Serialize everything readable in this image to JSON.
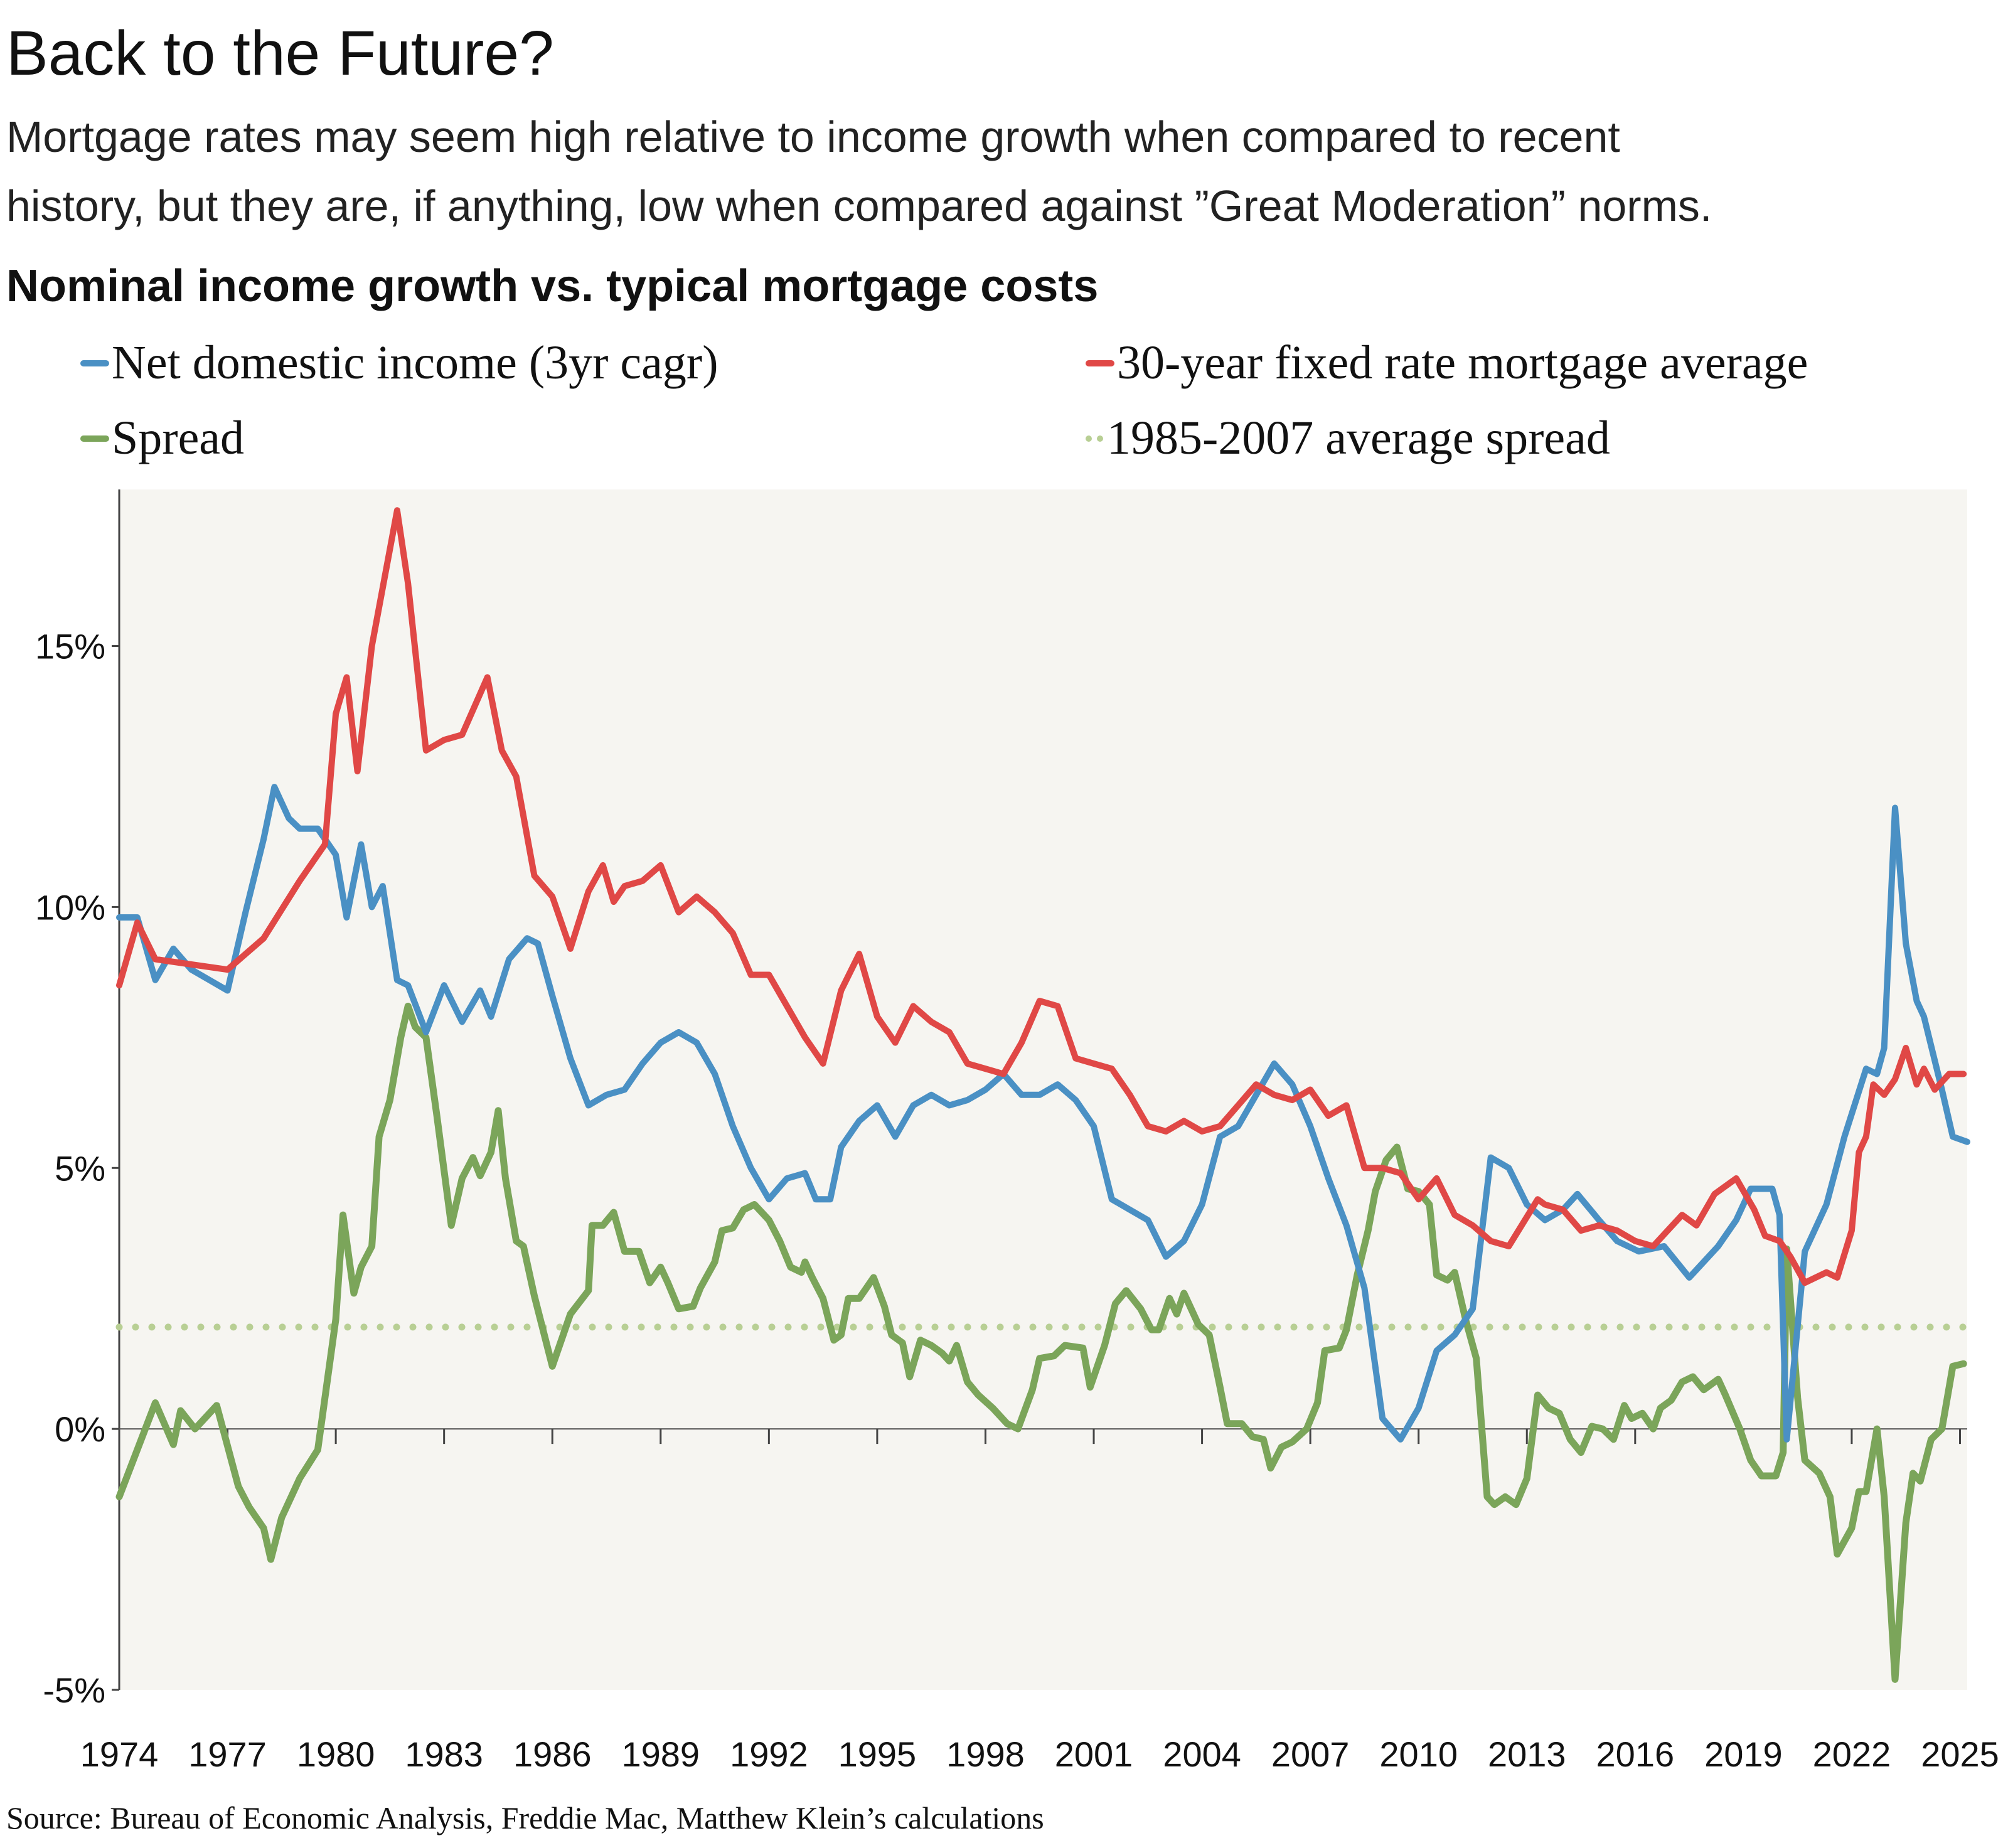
{
  "header": {
    "title": "Back to the Future?",
    "subtitle_line1": "Mortgage rates may seem high relative to income growth when compared to recent",
    "subtitle_line2": "history, but they are, if anything, low when compared against ”Great Moderation” norms.",
    "chart_heading": "Nominal income growth vs. typical mortgage costs"
  },
  "source": "Source: Bureau of Economic Analysis, Freddie Mac, Matthew Klein’s calculations",
  "colors": {
    "income": "#4a90c4",
    "mortgage": "#e04846",
    "spread": "#7ba55a",
    "avg_spread": "#b8cf94",
    "plot_bg": "#f6f5f1"
  },
  "chart_data": {
    "type": "line",
    "title": "Nominal income growth vs. typical mortgage costs",
    "xlabel": "",
    "ylabel": "",
    "xlim": [
      1974,
      2025.2
    ],
    "ylim": [
      -5,
      18
    ],
    "grid": false,
    "legend_placement": "top",
    "x_tick_labels": [
      "1974",
      "1977",
      "1980",
      "1983",
      "1986",
      "1989",
      "1992",
      "1995",
      "1998",
      "2001",
      "2004",
      "2007",
      "2010",
      "2013",
      "2016",
      "2019",
      "2022",
      "2025"
    ],
    "y_tick_labels": [
      {
        "value": 15,
        "label": "15%"
      },
      {
        "value": 10,
        "label": "10%"
      },
      {
        "value": 5,
        "label": "5%"
      },
      {
        "value": 0,
        "label": "0%"
      },
      {
        "value": -5,
        "label": "-5%"
      }
    ],
    "legend": [
      {
        "key": "income",
        "label": "Net domestic income (3yr cagr)"
      },
      {
        "key": "mortgage",
        "label": "30-year fixed rate mortgage average"
      },
      {
        "key": "spread",
        "label": "Spread"
      },
      {
        "key": "avg_spread",
        "label": "1985-2007 average spread"
      }
    ],
    "series": [
      {
        "name": "Net domestic income (3yr cagr)",
        "key": "income",
        "x": [
          1974,
          1974.5,
          1975,
          1975.5,
          1976,
          1976.5,
          1977,
          1977.5,
          1978,
          1978.3,
          1978.7,
          1979,
          1979.5,
          1980,
          1980.3,
          1980.7,
          1981,
          1981.3,
          1981.7,
          1982,
          1982.5,
          1983,
          1983.5,
          1984,
          1984.3,
          1984.8,
          1985.3,
          1985.6,
          1986,
          1986.5,
          1987,
          1987.5,
          1988,
          1988.5,
          1989,
          1989.5,
          1990,
          1990.5,
          1991,
          1991.5,
          1992,
          1992.5,
          1993,
          1993.3,
          1993.7,
          1994,
          1994.5,
          1995,
          1995.5,
          1996,
          1996.5,
          1997,
          1997.5,
          1998,
          1998.5,
          1999,
          1999.5,
          2000,
          2000.5,
          2001,
          2001.5,
          2002,
          2002.5,
          2003,
          2003.5,
          2004,
          2004.5,
          2005,
          2005.5,
          2006,
          2006.5,
          2007,
          2007.5,
          2008,
          2008.5,
          2009,
          2009.5,
          2010,
          2010.5,
          2011,
          2011.5,
          2012,
          2012.5,
          2013,
          2013.5,
          2014,
          2014.4,
          2015,
          2015.5,
          2016.1,
          2016.8,
          2017.5,
          2018.3,
          2018.8,
          2019.2,
          2019.8,
          2020.0,
          2020.2,
          2020.7,
          2021.3,
          2021.8,
          2022.4,
          2022.7,
          2022.9,
          2023.2,
          2023.5,
          2023.8,
          2024.0,
          2024.5,
          2024.8,
          2025.2
        ],
        "y": [
          9.8,
          9.8,
          8.6,
          9.2,
          8.8,
          8.6,
          8.4,
          9.9,
          11.3,
          12.3,
          11.7,
          11.5,
          11.5,
          11.0,
          9.8,
          11.2,
          10.0,
          10.4,
          8.6,
          8.5,
          7.6,
          8.5,
          7.8,
          8.4,
          7.9,
          9.0,
          9.4,
          9.3,
          8.3,
          7.1,
          6.2,
          6.4,
          6.5,
          7.0,
          7.4,
          7.6,
          7.4,
          6.8,
          5.8,
          5.0,
          4.4,
          4.8,
          4.9,
          4.4,
          4.4,
          5.4,
          5.9,
          6.2,
          5.6,
          6.2,
          6.4,
          6.2,
          6.3,
          6.5,
          6.8,
          6.4,
          6.4,
          6.6,
          6.3,
          5.8,
          4.4,
          4.2,
          4.0,
          3.3,
          3.6,
          4.3,
          5.6,
          5.8,
          6.4,
          7.0,
          6.6,
          5.8,
          4.8,
          3.9,
          2.7,
          0.2,
          -0.2,
          0.4,
          1.5,
          1.8,
          2.3,
          5.2,
          5.0,
          4.3,
          4.0,
          4.2,
          4.5,
          4.0,
          3.6,
          3.4,
          3.5,
          2.9,
          3.5,
          4.0,
          4.6,
          4.6,
          4.1,
          -0.2,
          3.4,
          4.3,
          5.6,
          6.9,
          6.8,
          7.3,
          11.9,
          9.3,
          8.2,
          7.9,
          6.5,
          5.6,
          5.5
        ]
      },
      {
        "name": "30-year fixed rate mortgage average",
        "key": "mortgage",
        "x": [
          1974,
          1974.5,
          1975,
          1976,
          1977,
          1978,
          1979,
          1979.7,
          1980,
          1980.3,
          1980.6,
          1981,
          1981.7,
          1982,
          1982.5,
          1983,
          1983.5,
          1984.2,
          1984.6,
          1985,
          1985.5,
          1986,
          1986.5,
          1987,
          1987.4,
          1987.7,
          1988,
          1988.5,
          1989,
          1989.5,
          1990,
          1990.5,
          1991,
          1991.5,
          1992,
          1992.5,
          1993,
          1993.5,
          1994,
          1994.5,
          1995,
          1995.5,
          1996,
          1996.5,
          1997,
          1997.5,
          1998,
          1998.5,
          1999,
          1999.5,
          2000,
          2000.5,
          2001,
          2001.5,
          2002,
          2002.5,
          2003,
          2003.5,
          2004,
          2004.5,
          2005,
          2005.5,
          2006,
          2006.5,
          2007,
          2007.5,
          2008,
          2008.5,
          2009,
          2009.5,
          2010,
          2010.5,
          2011,
          2011.5,
          2012,
          2012.5,
          2013.3,
          2013.5,
          2014,
          2014.5,
          2015,
          2015.5,
          2016,
          2016.5,
          2017.3,
          2017.7,
          2018.2,
          2018.8,
          2019.3,
          2019.6,
          2020.0,
          2020.3,
          2020.7,
          2021.3,
          2021.6,
          2022.0,
          2022.2,
          2022.4,
          2022.6,
          2022.9,
          2023.2,
          2023.5,
          2023.8,
          2024.0,
          2024.3,
          2024.7,
          2025.1
        ],
        "y": [
          8.5,
          9.7,
          9.0,
          8.9,
          8.8,
          9.4,
          10.5,
          11.2,
          13.7,
          14.4,
          12.6,
          15.0,
          17.6,
          16.2,
          13.0,
          13.2,
          13.3,
          14.4,
          13.0,
          12.5,
          10.6,
          10.2,
          9.2,
          10.3,
          10.8,
          10.1,
          10.4,
          10.5,
          10.8,
          9.9,
          10.2,
          9.9,
          9.5,
          8.7,
          8.7,
          8.1,
          7.5,
          7.0,
          8.4,
          9.1,
          7.9,
          7.4,
          8.1,
          7.8,
          7.6,
          7.0,
          6.9,
          6.8,
          7.4,
          8.2,
          8.1,
          7.1,
          7.0,
          6.9,
          6.4,
          5.8,
          5.7,
          5.9,
          5.7,
          5.8,
          6.2,
          6.6,
          6.4,
          6.3,
          6.5,
          6.0,
          6.2,
          5.0,
          5.0,
          4.9,
          4.4,
          4.8,
          4.1,
          3.9,
          3.6,
          3.5,
          4.4,
          4.3,
          4.2,
          3.8,
          3.9,
          3.8,
          3.6,
          3.5,
          4.1,
          3.9,
          4.5,
          4.8,
          4.2,
          3.7,
          3.6,
          3.3,
          2.8,
          3.0,
          2.9,
          3.8,
          5.3,
          5.6,
          6.6,
          6.4,
          6.7,
          7.3,
          6.6,
          6.9,
          6.5,
          6.8,
          6.8
        ]
      },
      {
        "name": "Spread",
        "key": "spread",
        "x": [
          1974.0,
          1975.0,
          1975.5,
          1975.7,
          1976.1,
          1976.7,
          1977.3,
          1977.6,
          1978.0,
          1978.2,
          1978.5,
          1979.0,
          1979.5,
          1980.0,
          1980.2,
          1980.5,
          1980.7,
          1981.0,
          1981.2,
          1981.5,
          1981.8,
          1982.0,
          1982.2,
          1982.5,
          1982.8,
          1983.2,
          1983.5,
          1983.8,
          1984.0,
          1984.3,
          1984.5,
          1984.7,
          1985.0,
          1985.2,
          1985.5,
          1986.0,
          1986.5,
          1987.0,
          1987.1,
          1987.4,
          1987.7,
          1988.0,
          1988.4,
          1988.7,
          1989.0,
          1989.2,
          1989.5,
          1989.9,
          1990.1,
          1990.5,
          1990.7,
          1991.0,
          1991.3,
          1991.6,
          1992.0,
          1992.3,
          1992.6,
          1992.9,
          1993.0,
          1993.2,
          1993.5,
          1993.8,
          1994.0,
          1994.2,
          1994.5,
          1994.7,
          1994.9,
          1995.2,
          1995.4,
          1995.7,
          1995.9,
          1996.2,
          1996.5,
          1996.8,
          1997.0,
          1997.2,
          1997.5,
          1997.8,
          1998.2,
          1998.6,
          1998.9,
          1999.3,
          1999.5,
          1999.9,
          2000.2,
          2000.7,
          2000.9,
          2001.3,
          2001.6,
          2001.9,
          2002.3,
          2002.6,
          2002.8,
          2003.1,
          2003.3,
          2003.5,
          2003.9,
          2004.2,
          2004.5,
          2004.7,
          2005.1,
          2005.4,
          2005.7,
          2005.9,
          2006.2,
          2006.5,
          2006.9,
          2007.2,
          2007.4,
          2007.8,
          2008.0,
          2008.3,
          2008.6,
          2008.8,
          2009.1,
          2009.4,
          2009.7,
          2010.0,
          2010.3,
          2010.5,
          2010.8,
          2011.0,
          2011.3,
          2011.6,
          2011.9,
          2012.1,
          2012.4,
          2012.7,
          2013.0,
          2013.3,
          2013.6,
          2013.9,
          2014.2,
          2014.5,
          2014.8,
          2015.1,
          2015.4,
          2015.7,
          2015.9,
          2016.2,
          2016.5,
          2016.7,
          2017.0,
          2017.3,
          2017.6,
          2017.9,
          2018.3,
          2018.5,
          2018.9,
          2019.2,
          2019.5,
          2019.9,
          2020.1,
          2020.2,
          2020.5,
          2020.7,
          2021.1,
          2021.4,
          2021.6,
          2022.0,
          2022.2,
          2022.4,
          2022.7,
          2022.9,
          2023.2,
          2023.5,
          2023.7,
          2023.9,
          2024.2,
          2024.5,
          2024.8,
          2025.1
        ],
        "y": [
          -1.3,
          0.5,
          -0.3,
          0.35,
          0.0,
          0.45,
          -1.1,
          -1.5,
          -1.9,
          -2.5,
          -1.7,
          -0.95,
          -0.4,
          2.1,
          4.1,
          2.6,
          3.1,
          3.5,
          5.6,
          6.3,
          7.5,
          8.1,
          7.7,
          7.5,
          6.0,
          3.9,
          4.8,
          5.2,
          4.85,
          5.3,
          6.1,
          4.8,
          3.6,
          3.5,
          2.55,
          1.2,
          2.2,
          2.65,
          3.9,
          3.9,
          4.15,
          3.4,
          3.4,
          2.8,
          3.1,
          2.8,
          2.3,
          2.35,
          2.7,
          3.2,
          3.8,
          3.85,
          4.2,
          4.3,
          4.0,
          3.6,
          3.1,
          3.0,
          3.2,
          2.9,
          2.5,
          1.7,
          1.8,
          2.5,
          2.5,
          2.7,
          2.9,
          2.35,
          1.8,
          1.65,
          1.0,
          1.7,
          1.6,
          1.45,
          1.3,
          1.6,
          0.9,
          0.65,
          0.4,
          0.1,
          0.0,
          0.75,
          1.35,
          1.4,
          1.6,
          1.55,
          0.8,
          1.6,
          2.4,
          2.65,
          2.3,
          1.9,
          1.9,
          2.5,
          2.2,
          2.6,
          2.0,
          1.8,
          0.8,
          0.1,
          0.1,
          -0.15,
          -0.2,
          -0.75,
          -0.35,
          -0.25,
          0.0,
          0.5,
          1.5,
          1.55,
          1.9,
          2.95,
          3.8,
          4.55,
          5.15,
          5.4,
          4.6,
          4.55,
          4.3,
          2.95,
          2.85,
          3.0,
          2.1,
          1.35,
          -1.3,
          -1.45,
          -1.3,
          -1.45,
          -0.95,
          0.65,
          0.4,
          0.3,
          -0.2,
          -0.45,
          0.05,
          0.0,
          -0.2,
          0.45,
          0.2,
          0.3,
          0.0,
          0.4,
          0.55,
          0.9,
          1.0,
          0.75,
          0.95,
          0.65,
          0.0,
          -0.6,
          -0.9,
          -0.9,
          -0.45,
          3.45,
          0.6,
          -0.6,
          -0.85,
          -1.3,
          -2.4,
          -1.9,
          -1.2,
          -1.2,
          0.0,
          -1.3,
          -4.8,
          -1.8,
          -0.85,
          -1.0,
          -0.2,
          0.0,
          1.2,
          1.25
        ]
      },
      {
        "name": "1985-2007 average spread",
        "key": "avg_spread",
        "x": [
          1974,
          2025.2
        ],
        "y": [
          1.95,
          1.95
        ]
      }
    ]
  }
}
